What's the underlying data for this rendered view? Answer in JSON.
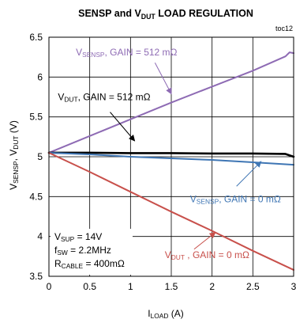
{
  "chart_data": {
    "type": "line",
    "title": "SENSP and V<sub>DUT</sub> LOAD REGULATION",
    "code": "toc12",
    "xlabel": "I<sub>LOAD</sub> (A)",
    "ylabel": "V<sub>SENSP</sub>, V<sub>DUT</sub> (V)",
    "xlim": [
      0,
      3
    ],
    "ylim": [
      3.5,
      6.5
    ],
    "xticks": [
      0,
      0.5,
      1,
      1.5,
      2,
      2.5,
      3
    ],
    "xtick_labels": [
      "0",
      "0.5",
      "1",
      "1.5",
      "2",
      "2.5",
      "3"
    ],
    "yticks": [
      3.5,
      4,
      4.5,
      5,
      5.5,
      6,
      6.5
    ],
    "ytick_labels": [
      "3.5",
      "4",
      "4.5",
      "5",
      "5.5",
      "6",
      "6.5"
    ],
    "grid": true,
    "series": [
      {
        "name": "V<sub>SENSP</sub>, GAIN = 512 mΩ",
        "color": "#8e6bb4",
        "x": [
          0,
          0.5,
          1,
          1.5,
          2,
          2.5,
          2.9,
          2.95,
          3
        ],
        "y": [
          5.05,
          5.26,
          5.47,
          5.68,
          5.88,
          6.08,
          6.26,
          6.31,
          6.3
        ]
      },
      {
        "name": "V<sub>DUT</sub>, GAIN = 512 mΩ",
        "color": "#000000",
        "x": [
          0,
          0.5,
          1,
          1.5,
          2,
          2.5,
          2.9,
          3
        ],
        "y": [
          5.05,
          5.05,
          5.045,
          5.045,
          5.04,
          5.04,
          5.035,
          5.0
        ]
      },
      {
        "name": "V<sub>SENSP</sub>, GAIN = 0 mΩ",
        "color": "#3f76b4",
        "x": [
          0,
          0.5,
          1,
          1.5,
          2,
          2.5,
          3
        ],
        "y": [
          5.05,
          5.03,
          5.0,
          4.98,
          4.96,
          4.93,
          4.9
        ]
      },
      {
        "name": "V<sub>DUT</sub> , GAIN = 0 mΩ",
        "color": "#c8504b",
        "x": [
          0,
          0.5,
          1,
          1.5,
          2,
          2.5,
          3
        ],
        "y": [
          5.05,
          4.81,
          4.56,
          4.31,
          4.07,
          3.82,
          3.58
        ]
      }
    ],
    "annotations": [
      {
        "text": "V<sub>SENSP</sub>, GAIN = 512 mΩ",
        "color": "#8e6bb4",
        "x": 0.33,
        "y": 6.27,
        "arrow_to": [
          1.5,
          5.79
        ]
      },
      {
        "text": "V<sub>DUT</sub>, GAIN = 512 mΩ",
        "color": "#000000",
        "x": 0.11,
        "y": 5.71,
        "arrow_to": [
          1.05,
          5.2
        ]
      },
      {
        "text": "V<sub>SENSP</sub>, GAIN = 0 mΩ",
        "color": "#3f76b4",
        "x": 1.73,
        "y": 4.43,
        "arrow_to": [
          2.6,
          4.94
        ]
      },
      {
        "text": "V<sub>DUT</sub> , GAIN = 0 mΩ",
        "color": "#c8504b",
        "x": 1.42,
        "y": 3.73,
        "arrow_to": [
          2.04,
          4.05
        ]
      }
    ],
    "conditions": [
      "V<sub>SUP</sub> = 14V",
      "f<sub>SW</sub> = 2.2MHz",
      "R<sub>CABLE</sub> = 400mΩ"
    ]
  }
}
